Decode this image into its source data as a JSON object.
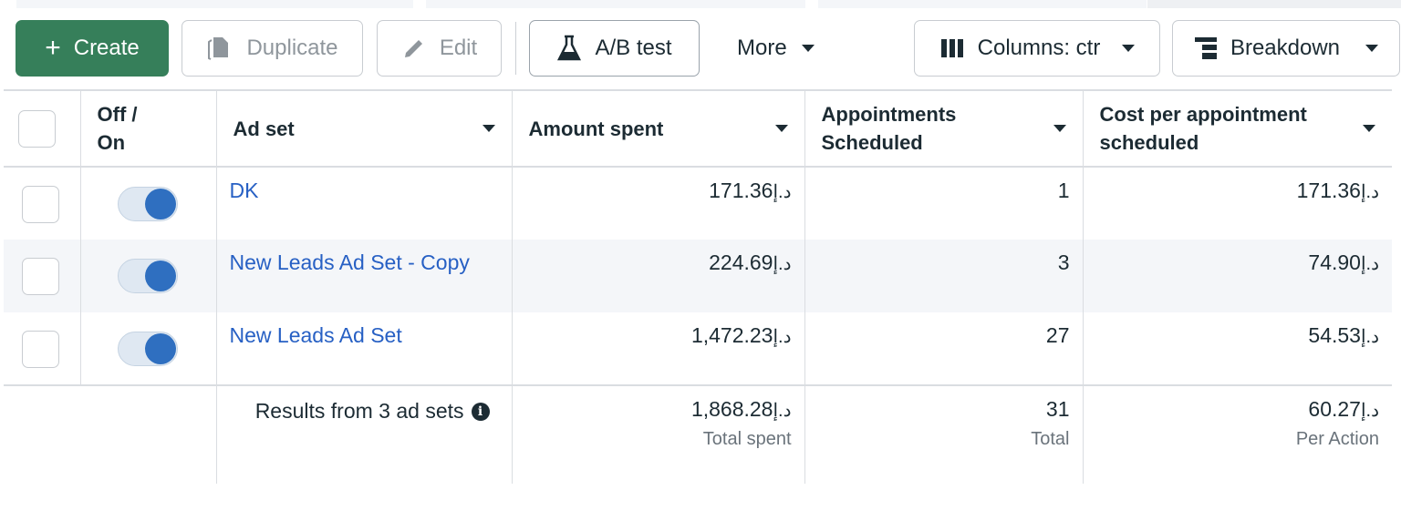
{
  "toolbar": {
    "create": "Create",
    "duplicate": "Duplicate",
    "edit": "Edit",
    "ab_test": "A/B test",
    "more": "More",
    "columns": "Columns: ctr",
    "breakdown": "Breakdown"
  },
  "table": {
    "headers": {
      "toggle": "Off / On",
      "ad_set": "Ad set",
      "amount_spent": "Amount spent",
      "appointments": "Appointments Scheduled",
      "cost": "Cost per appointment scheduled"
    },
    "currency": "د.إ",
    "rows": [
      {
        "name": "DK",
        "amount": "171.36",
        "appointments": "1",
        "cost": "171.36",
        "on": true
      },
      {
        "name": "New Leads Ad Set - Copy",
        "amount": "224.69",
        "appointments": "3",
        "cost": "74.90",
        "on": true
      },
      {
        "name": "New Leads Ad Set",
        "amount": "1,472.23",
        "appointments": "27",
        "cost": "54.53",
        "on": true
      }
    ],
    "footer": {
      "results": "Results from 3 ad sets",
      "amount": "1,868.28",
      "amount_label": "Total spent",
      "appointments": "31",
      "appointments_label": "Total",
      "cost": "60.27",
      "cost_label": "Per Action"
    }
  }
}
